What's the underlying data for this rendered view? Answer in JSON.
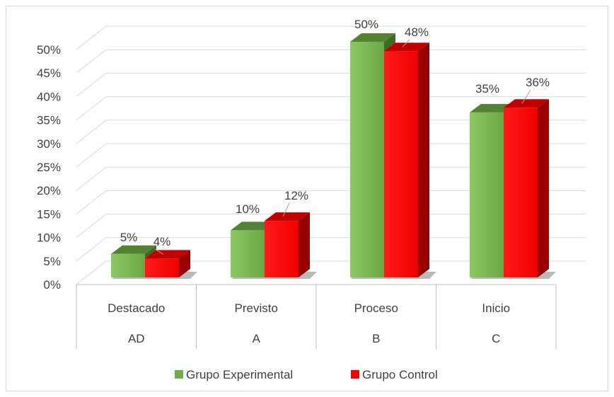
{
  "chart_data": {
    "type": "bar",
    "style": "3d-clustered-column",
    "categories": [
      {
        "name": "Destacado",
        "code": "AD"
      },
      {
        "name": "Previsto",
        "code": "A"
      },
      {
        "name": "Proceso",
        "code": "B"
      },
      {
        "name": "Inicio",
        "code": "C"
      }
    ],
    "series": [
      {
        "name": "Grupo Experimental",
        "color": "#70ad47",
        "values": [
          5,
          10,
          50,
          35
        ],
        "labels": [
          "5%",
          "10%",
          "50%",
          "35%"
        ]
      },
      {
        "name": "Grupo Control",
        "color": "#ff0000",
        "values": [
          4,
          12,
          48,
          36
        ],
        "labels": [
          "4%",
          "12%",
          "48%",
          "36%"
        ]
      }
    ],
    "y_ticks": [
      "0%",
      "5%",
      "10%",
      "15%",
      "20%",
      "25%",
      "30%",
      "35%",
      "40%",
      "45%",
      "50%"
    ],
    "ylim": [
      0,
      50
    ],
    "grid": true,
    "legend_position": "bottom"
  }
}
